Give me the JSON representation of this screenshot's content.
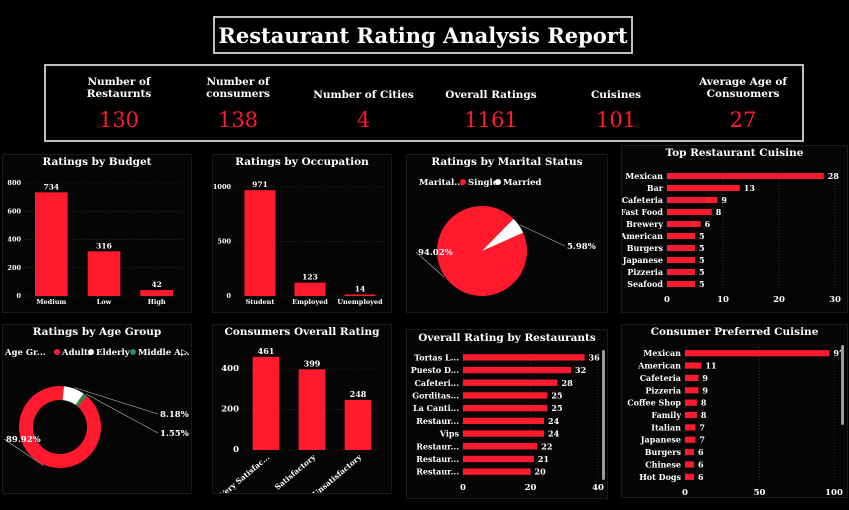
{
  "title": "Restaurant Rating Analysis Report",
  "kpis": [
    {
      "label": "Number of Restaurnts",
      "value": "130"
    },
    {
      "label": "Number of consumers",
      "value": "138"
    },
    {
      "label": "Number of Cities",
      "value": "4"
    },
    {
      "label": "Overall Ratings",
      "value": "1161"
    },
    {
      "label": "Cuisines",
      "value": "101"
    },
    {
      "label": "Average Age of Consuomers",
      "value": "27"
    }
  ],
  "colors": {
    "accent": "#ff1a2e",
    "white": "#ffffff",
    "green": "#2e8b57"
  },
  "chart_data": [
    {
      "type": "bar",
      "title": "Ratings by Budget",
      "categories": [
        "Medium",
        "Low",
        "High"
      ],
      "values": [
        734,
        316,
        42
      ],
      "ylim": [
        0,
        800
      ],
      "yticks": [
        0,
        200,
        400,
        600,
        800
      ]
    },
    {
      "type": "bar",
      "title": "Ratings by Occupation",
      "categories": [
        "Student",
        "Employed",
        "Unemployed"
      ],
      "values": [
        971,
        123,
        14
      ],
      "ylim": [
        0,
        1000
      ],
      "yticks": [
        0,
        500,
        1000
      ]
    },
    {
      "type": "pie",
      "title": "Ratings by Marital Status",
      "legend_title": "Marital...",
      "slices": [
        {
          "name": "Single",
          "value": 94.02,
          "label": "94.02%",
          "color": "#ff1a2e"
        },
        {
          "name": "Married",
          "value": 5.98,
          "label": "5.98%",
          "color": "#ffffff"
        }
      ]
    },
    {
      "type": "bar",
      "orientation": "horizontal",
      "title": "Top Restaurant Cuisine",
      "categories": [
        "Mexican",
        "Bar",
        "Cafeteria",
        "Fast Food",
        "Brewery",
        "American",
        "Burgers",
        "Japanese",
        "Pizzeria",
        "Seafood"
      ],
      "values": [
        28,
        13,
        9,
        8,
        6,
        5,
        5,
        5,
        5,
        5
      ],
      "xlim": [
        0,
        30
      ],
      "xticks": [
        0,
        10,
        20,
        30
      ]
    },
    {
      "type": "pie",
      "donut": true,
      "title": "Ratings by Age Group",
      "legend_title": "Age Gr...",
      "slices": [
        {
          "name": "Adults",
          "value": 89.92,
          "label": "89.92%",
          "color": "#ff1a2e"
        },
        {
          "name": "Elderly",
          "value": 8.18,
          "label": "8.18%",
          "color": "#ffffff"
        },
        {
          "name": "Middle A...",
          "value": 1.55,
          "label": "1.55%",
          "color": "#2e8b57"
        }
      ]
    },
    {
      "type": "bar",
      "title": "Consumers Overall Rating",
      "categories": [
        "Very Satisfac...",
        "Satisfactory",
        "Unsatisfactory"
      ],
      "values": [
        461,
        399,
        248
      ],
      "ylim": [
        0,
        480
      ],
      "yticks": [
        0,
        200,
        400
      ]
    },
    {
      "type": "bar",
      "orientation": "horizontal",
      "title": "Overall Rating by Restaurants",
      "categories": [
        "Tortas L...",
        "Puesto D...",
        "Cafeteri...",
        "Gorditas...",
        "La Canti...",
        "Restaur...",
        "Vips",
        "Restaur...",
        "Restaur...",
        "Restaur..."
      ],
      "values": [
        36,
        32,
        28,
        25,
        25,
        24,
        24,
        22,
        21,
        20
      ],
      "xlim": [
        0,
        40
      ],
      "xticks": [
        0,
        20,
        40
      ]
    },
    {
      "type": "bar",
      "orientation": "horizontal",
      "title": "Consumer Preferred Cuisine",
      "categories": [
        "Mexican",
        "American",
        "Cafeteria",
        "Pizzeria",
        "Coffee Shop",
        "Family",
        "Italian",
        "Japanese",
        "Burgers",
        "Chinese",
        "Hot Dogs"
      ],
      "values": [
        97,
        11,
        9,
        9,
        8,
        8,
        7,
        7,
        6,
        6,
        6
      ],
      "xlim": [
        0,
        100
      ],
      "xticks": [
        0,
        50,
        100
      ]
    }
  ]
}
